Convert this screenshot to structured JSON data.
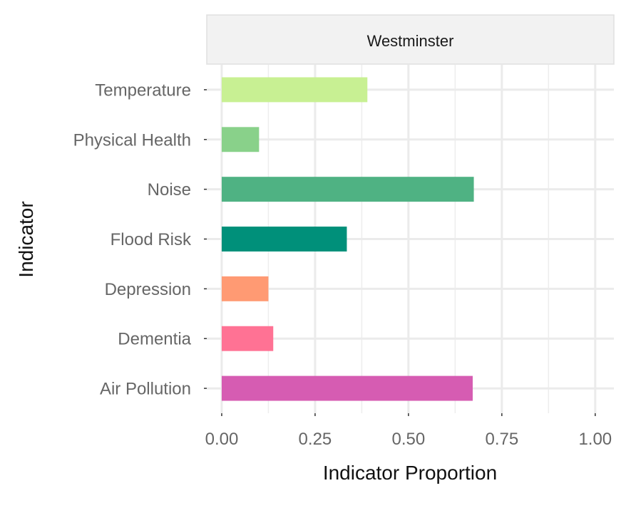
{
  "chart_data": {
    "type": "bar",
    "orientation": "horizontal",
    "facet": "Westminster",
    "xlabel": "Indicator Proportion",
    "ylabel": "Indicator",
    "xlim": [
      -0.04,
      1.05
    ],
    "x_ticks": [
      0,
      0.25,
      0.5,
      0.75,
      1
    ],
    "x_tick_labels": [
      "0.00",
      "0.25",
      "0.50",
      "0.75",
      "1.00"
    ],
    "categories": [
      "Temperature",
      "Physical Health",
      "Noise",
      "Flood Risk",
      "Depression",
      "Dementia",
      "Air Pollution"
    ],
    "values": [
      0.39,
      0.1,
      0.675,
      0.335,
      0.125,
      0.138,
      0.672
    ],
    "colors": [
      "#c8f093",
      "#89d18a",
      "#4fb283",
      "#00907a",
      "#ff9a73",
      "#ff7294",
      "#d65cb2"
    ],
    "grid": true,
    "legend": "none"
  }
}
